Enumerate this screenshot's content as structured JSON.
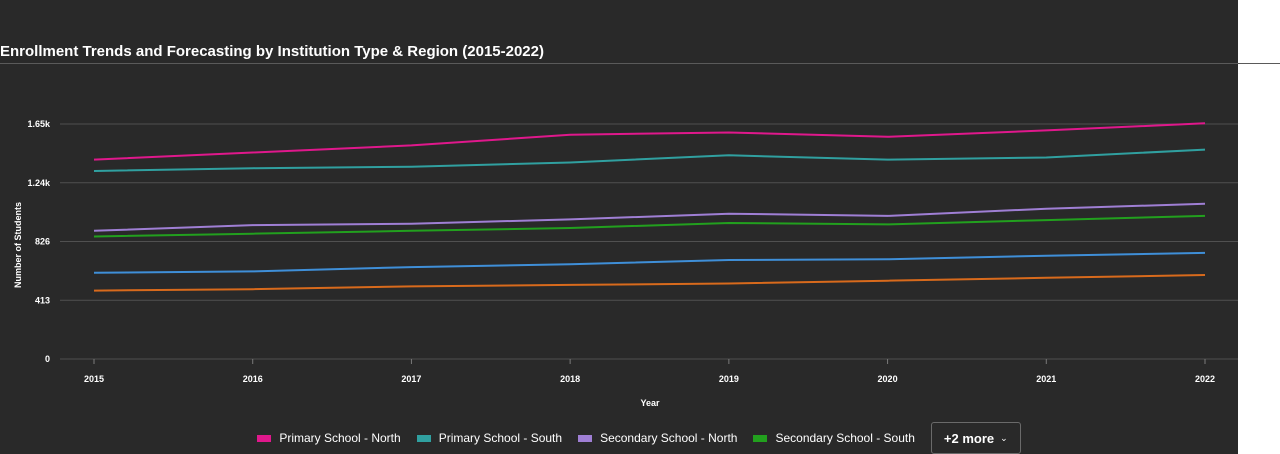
{
  "chart_data": {
    "type": "line",
    "title": "Enrollment Trends and Forecasting by Institution Type & Region (2015-2022)",
    "xlabel": "Year",
    "ylabel": "Number of Students",
    "x": [
      "2015",
      "2016",
      "2017",
      "2018",
      "2019",
      "2020",
      "2021",
      "2022"
    ],
    "yticks": [
      "0",
      "413",
      "826",
      "1.24k",
      "1.65k"
    ],
    "ylim": [
      0,
      1650
    ],
    "grid": true,
    "legend_position": "bottom",
    "series": [
      {
        "name": "Primary School - North",
        "color": "#e0188c",
        "values": [
          1400,
          1450,
          1500,
          1575,
          1590,
          1560,
          1605,
          1655
        ],
        "in_legend": true
      },
      {
        "name": "Primary School - South",
        "color": "#30a0a0",
        "values": [
          1320,
          1340,
          1350,
          1380,
          1430,
          1400,
          1415,
          1470
        ],
        "in_legend": true
      },
      {
        "name": "Secondary School - North",
        "color": "#9f7fd4",
        "values": [
          900,
          940,
          950,
          980,
          1020,
          1005,
          1055,
          1090
        ],
        "in_legend": true
      },
      {
        "name": "Secondary School - South",
        "color": "#22a01e",
        "values": [
          860,
          880,
          900,
          920,
          955,
          945,
          975,
          1005
        ],
        "in_legend": true
      },
      {
        "color": "#3f8fd8",
        "values": [
          605,
          615,
          645,
          665,
          695,
          700,
          725,
          745
        ],
        "in_legend": false
      },
      {
        "color": "#d86a1c",
        "values": [
          480,
          490,
          510,
          520,
          530,
          550,
          570,
          590
        ],
        "in_legend": false
      }
    ],
    "more_label": "+2 more"
  }
}
